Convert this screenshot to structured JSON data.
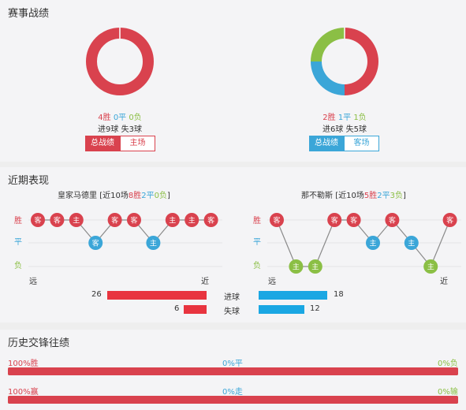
{
  "colors": {
    "win": "#d9424e",
    "draw": "#3ba6d8",
    "loss": "#8bbf45",
    "goals_bar": "#e8343f",
    "away_goals_bar": "#1aa7e3"
  },
  "summary": {
    "title": "赛事战绩",
    "home": {
      "win": "4胜",
      "draw": "0平",
      "loss": "0负",
      "goals": "进9球",
      "conceded": "失3球",
      "donut": [
        4,
        0,
        0
      ],
      "tab_active": "总战绩",
      "tab_other": "主场"
    },
    "away": {
      "win": "2胜",
      "draw": "1平",
      "loss": "1负",
      "goals": "进6球",
      "conceded": "失5球",
      "donut": [
        2,
        1,
        1
      ],
      "tab_active": "总战绩",
      "tab_other": "客场"
    }
  },
  "recent": {
    "title": "近期表现",
    "y_labels": {
      "win": "胜",
      "draw": "平",
      "loss": "负"
    },
    "x_labels": {
      "far": "远",
      "near": "近"
    },
    "home": {
      "name": "皇家马德里",
      "prefix": "[近10场",
      "wins": "8胜",
      "draws": "2平",
      "losses": "0负",
      "suffix": "]",
      "results": [
        "W",
        "W",
        "W",
        "D",
        "W",
        "W",
        "D",
        "W",
        "W",
        "W"
      ],
      "venues": [
        "客",
        "客",
        "主",
        "客",
        "客",
        "客",
        "主",
        "主",
        "主",
        "客"
      ]
    },
    "away": {
      "name": "那不勒斯",
      "prefix": "[近10场",
      "wins": "5胜",
      "draws": "2平",
      "losses": "3负",
      "suffix": "]",
      "results": [
        "W",
        "L",
        "L",
        "W",
        "W",
        "D",
        "W",
        "D",
        "L",
        "W"
      ],
      "venues": [
        "客",
        "主",
        "主",
        "客",
        "客",
        "主",
        "客",
        "主",
        "主",
        "客"
      ]
    },
    "goals": {
      "label_for": "进球",
      "label_against": "失球",
      "home_for": 26,
      "home_against": 6,
      "away_for": 18,
      "away_against": 12
    }
  },
  "history": {
    "title": "历史交锋往绩",
    "row1": {
      "left": "100%胜",
      "mid": "0%平",
      "right": "0%负",
      "left_pct": 100
    },
    "row2": {
      "left": "100%赢",
      "mid": "0%走",
      "right": "0%输",
      "left_pct": 100
    }
  }
}
